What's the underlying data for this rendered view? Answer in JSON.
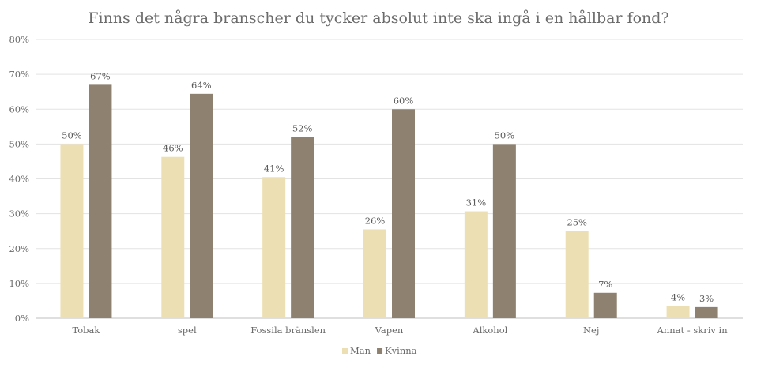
{
  "chart_data": {
    "type": "bar",
    "title": "Finns det några branscher du tycker absolut inte ska ingå i en hållbar fond?",
    "xlabel": "",
    "ylabel": "",
    "ylim": [
      0,
      80
    ],
    "yticks": [
      0,
      10,
      20,
      30,
      40,
      50,
      60,
      70,
      80
    ],
    "ytick_labels": [
      "0%",
      "10%",
      "20%",
      "30%",
      "40%",
      "50%",
      "60%",
      "70%",
      "80%"
    ],
    "grid": true,
    "legend_position": "bottom",
    "categories": [
      "Tobak",
      "spel",
      "Fossila bränslen",
      "Vapen",
      "Alkohol",
      "Nej",
      "Annat - skriv in"
    ],
    "series": [
      {
        "name": "Man",
        "color": "#EDDFB4",
        "values": [
          50,
          46.3,
          40.5,
          25.5,
          30.7,
          25,
          3.5
        ],
        "labels": [
          "50%",
          "46%",
          "41%",
          "26%",
          "31%",
          "25%",
          "4%"
        ]
      },
      {
        "name": "Kvinna",
        "color": "#8E8170",
        "values": [
          67,
          64.4,
          52,
          60,
          50,
          7.3,
          3.2
        ],
        "labels": [
          "67%",
          "64%",
          "52%",
          "60%",
          "50%",
          "7%",
          "3%"
        ]
      }
    ]
  }
}
